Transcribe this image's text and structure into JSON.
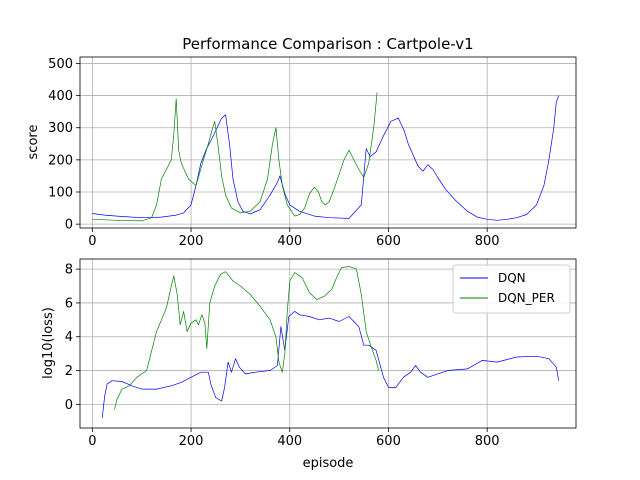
{
  "title": "Performance Comparison : Cartpole-v1",
  "colors": {
    "DQN": "#0000ff",
    "DQN_PER": "#008000",
    "grid": "#b0b0b0"
  },
  "legend": {
    "position": "upper-right",
    "entries": [
      "DQN",
      "DQN_PER"
    ]
  },
  "chart_data": [
    {
      "type": "line",
      "name": "score-plot",
      "xlabel": "",
      "ylabel": "score",
      "xlim": [
        -25,
        980
      ],
      "ylim": [
        -12,
        520
      ],
      "xticks": [
        0,
        200,
        400,
        600,
        800
      ],
      "yticks": [
        0,
        100,
        200,
        300,
        400,
        500
      ],
      "grid": true,
      "series": [
        {
          "name": "DQN",
          "color": "#0000ff",
          "points": [
            [
              0,
              33
            ],
            [
              25,
              28
            ],
            [
              50,
              25
            ],
            [
              80,
              22
            ],
            [
              110,
              20
            ],
            [
              140,
              22
            ],
            [
              170,
              28
            ],
            [
              185,
              35
            ],
            [
              200,
              60
            ],
            [
              210,
              120
            ],
            [
              220,
              190
            ],
            [
              230,
              230
            ],
            [
              240,
              260
            ],
            [
              250,
              290
            ],
            [
              262,
              330
            ],
            [
              270,
              340
            ],
            [
              278,
              250
            ],
            [
              285,
              140
            ],
            [
              295,
              70
            ],
            [
              305,
              40
            ],
            [
              320,
              32
            ],
            [
              340,
              45
            ],
            [
              360,
              90
            ],
            [
              375,
              130
            ],
            [
              380,
              150
            ],
            [
              390,
              95
            ],
            [
              400,
              60
            ],
            [
              420,
              40
            ],
            [
              450,
              25
            ],
            [
              480,
              20
            ],
            [
              520,
              18
            ],
            [
              545,
              60
            ],
            [
              550,
              150
            ],
            [
              555,
              235
            ],
            [
              563,
              210
            ],
            [
              575,
              225
            ],
            [
              590,
              275
            ],
            [
              605,
              320
            ],
            [
              620,
              330
            ],
            [
              632,
              290
            ],
            [
              640,
              250
            ],
            [
              650,
              215
            ],
            [
              660,
              180
            ],
            [
              670,
              165
            ],
            [
              680,
              185
            ],
            [
              690,
              170
            ],
            [
              700,
              145
            ],
            [
              715,
              110
            ],
            [
              735,
              75
            ],
            [
              760,
              40
            ],
            [
              780,
              22
            ],
            [
              800,
              15
            ],
            [
              820,
              12
            ],
            [
              840,
              15
            ],
            [
              860,
              20
            ],
            [
              880,
              30
            ],
            [
              900,
              60
            ],
            [
              915,
              120
            ],
            [
              925,
              200
            ],
            [
              935,
              300
            ],
            [
              940,
              380
            ],
            [
              945,
              400
            ]
          ]
        },
        {
          "name": "DQN_PER",
          "color": "#008000",
          "points": [
            [
              0,
              15
            ],
            [
              50,
              12
            ],
            [
              100,
              10
            ],
            [
              120,
              20
            ],
            [
              130,
              60
            ],
            [
              140,
              140
            ],
            [
              150,
              170
            ],
            [
              160,
              200
            ],
            [
              165,
              280
            ],
            [
              170,
              390
            ],
            [
              175,
              230
            ],
            [
              180,
              190
            ],
            [
              195,
              140
            ],
            [
              210,
              120
            ],
            [
              225,
              200
            ],
            [
              235,
              250
            ],
            [
              242,
              290
            ],
            [
              248,
              320
            ],
            [
              255,
              240
            ],
            [
              262,
              150
            ],
            [
              270,
              90
            ],
            [
              282,
              50
            ],
            [
              300,
              35
            ],
            [
              320,
              40
            ],
            [
              340,
              70
            ],
            [
              355,
              140
            ],
            [
              365,
              250
            ],
            [
              372,
              300
            ],
            [
              378,
              200
            ],
            [
              385,
              120
            ],
            [
              395,
              60
            ],
            [
              410,
              25
            ],
            [
              420,
              30
            ],
            [
              430,
              50
            ],
            [
              440,
              95
            ],
            [
              450,
              115
            ],
            [
              458,
              100
            ],
            [
              465,
              70
            ],
            [
              472,
              60
            ],
            [
              480,
              70
            ],
            [
              490,
              110
            ],
            [
              500,
              155
            ],
            [
              510,
              200
            ],
            [
              520,
              230
            ],
            [
              530,
              200
            ],
            [
              540,
              170
            ],
            [
              550,
              145
            ],
            [
              560,
              190
            ],
            [
              570,
              300
            ],
            [
              577,
              410
            ]
          ]
        }
      ]
    },
    {
      "type": "line",
      "name": "loss-plot",
      "xlabel": "episode",
      "ylabel": "log10(loss)",
      "xlim": [
        -25,
        980
      ],
      "ylim": [
        -1.4,
        8.6
      ],
      "xticks": [
        0,
        200,
        400,
        600,
        800
      ],
      "yticks": [
        0,
        2,
        4,
        6,
        8
      ],
      "grid": true,
      "series": [
        {
          "name": "DQN",
          "color": "#0000ff",
          "points": [
            [
              20,
              -0.8
            ],
            [
              25,
              0.5
            ],
            [
              30,
              1.2
            ],
            [
              40,
              1.4
            ],
            [
              60,
              1.35
            ],
            [
              80,
              1.1
            ],
            [
              100,
              0.9
            ],
            [
              130,
              0.9
            ],
            [
              160,
              1.1
            ],
            [
              180,
              1.3
            ],
            [
              200,
              1.6
            ],
            [
              220,
              1.9
            ],
            [
              235,
              1.9
            ],
            [
              240,
              1.2
            ],
            [
              250,
              0.4
            ],
            [
              262,
              0.2
            ],
            [
              268,
              1.0
            ],
            [
              275,
              2.5
            ],
            [
              282,
              1.9
            ],
            [
              290,
              2.7
            ],
            [
              298,
              2.2
            ],
            [
              310,
              1.8
            ],
            [
              330,
              1.9
            ],
            [
              360,
              2.0
            ],
            [
              375,
              2.3
            ],
            [
              382,
              4.6
            ],
            [
              390,
              3.2
            ],
            [
              398,
              5.2
            ],
            [
              410,
              5.5
            ],
            [
              420,
              5.3
            ],
            [
              440,
              5.2
            ],
            [
              460,
              5.0
            ],
            [
              480,
              5.1
            ],
            [
              500,
              4.9
            ],
            [
              520,
              5.2
            ],
            [
              540,
              4.6
            ],
            [
              550,
              3.5
            ],
            [
              560,
              3.5
            ],
            [
              575,
              3.2
            ],
            [
              590,
              1.6
            ],
            [
              600,
              1.0
            ],
            [
              615,
              1.0
            ],
            [
              630,
              1.6
            ],
            [
              645,
              1.9
            ],
            [
              655,
              2.3
            ],
            [
              665,
              1.9
            ],
            [
              680,
              1.6
            ],
            [
              700,
              1.8
            ],
            [
              720,
              2.0
            ],
            [
              760,
              2.1
            ],
            [
              790,
              2.6
            ],
            [
              820,
              2.5
            ],
            [
              860,
              2.8
            ],
            [
              900,
              2.85
            ],
            [
              925,
              2.7
            ],
            [
              940,
              2.2
            ],
            [
              945,
              1.4
            ]
          ]
        },
        {
          "name": "DQN_PER",
          "color": "#008000",
          "points": [
            [
              45,
              -0.3
            ],
            [
              50,
              0.3
            ],
            [
              60,
              0.9
            ],
            [
              75,
              1.1
            ],
            [
              90,
              1.6
            ],
            [
              110,
              2.0
            ],
            [
              130,
              4.3
            ],
            [
              150,
              5.7
            ],
            [
              160,
              7.0
            ],
            [
              165,
              7.6
            ],
            [
              172,
              6.5
            ],
            [
              178,
              4.7
            ],
            [
              185,
              5.5
            ],
            [
              192,
              4.3
            ],
            [
              200,
              4.8
            ],
            [
              210,
              5.0
            ],
            [
              215,
              4.7
            ],
            [
              222,
              5.3
            ],
            [
              228,
              4.8
            ],
            [
              232,
              3.3
            ],
            [
              238,
              6.0
            ],
            [
              248,
              7.0
            ],
            [
              260,
              7.7
            ],
            [
              270,
              7.85
            ],
            [
              285,
              7.3
            ],
            [
              300,
              7.0
            ],
            [
              320,
              6.5
            ],
            [
              340,
              5.8
            ],
            [
              360,
              5.0
            ],
            [
              372,
              4.0
            ],
            [
              378,
              2.5
            ],
            [
              385,
              1.9
            ],
            [
              390,
              3.0
            ],
            [
              395,
              5.5
            ],
            [
              400,
              7.3
            ],
            [
              410,
              7.8
            ],
            [
              425,
              7.5
            ],
            [
              440,
              6.6
            ],
            [
              455,
              6.2
            ],
            [
              470,
              6.4
            ],
            [
              485,
              6.8
            ],
            [
              495,
              7.5
            ],
            [
              505,
              8.1
            ],
            [
              520,
              8.15
            ],
            [
              535,
              8.0
            ],
            [
              545,
              6.5
            ],
            [
              555,
              4.3
            ],
            [
              565,
              3.4
            ],
            [
              575,
              2.6
            ],
            [
              580,
              2.0
            ]
          ]
        }
      ]
    }
  ]
}
